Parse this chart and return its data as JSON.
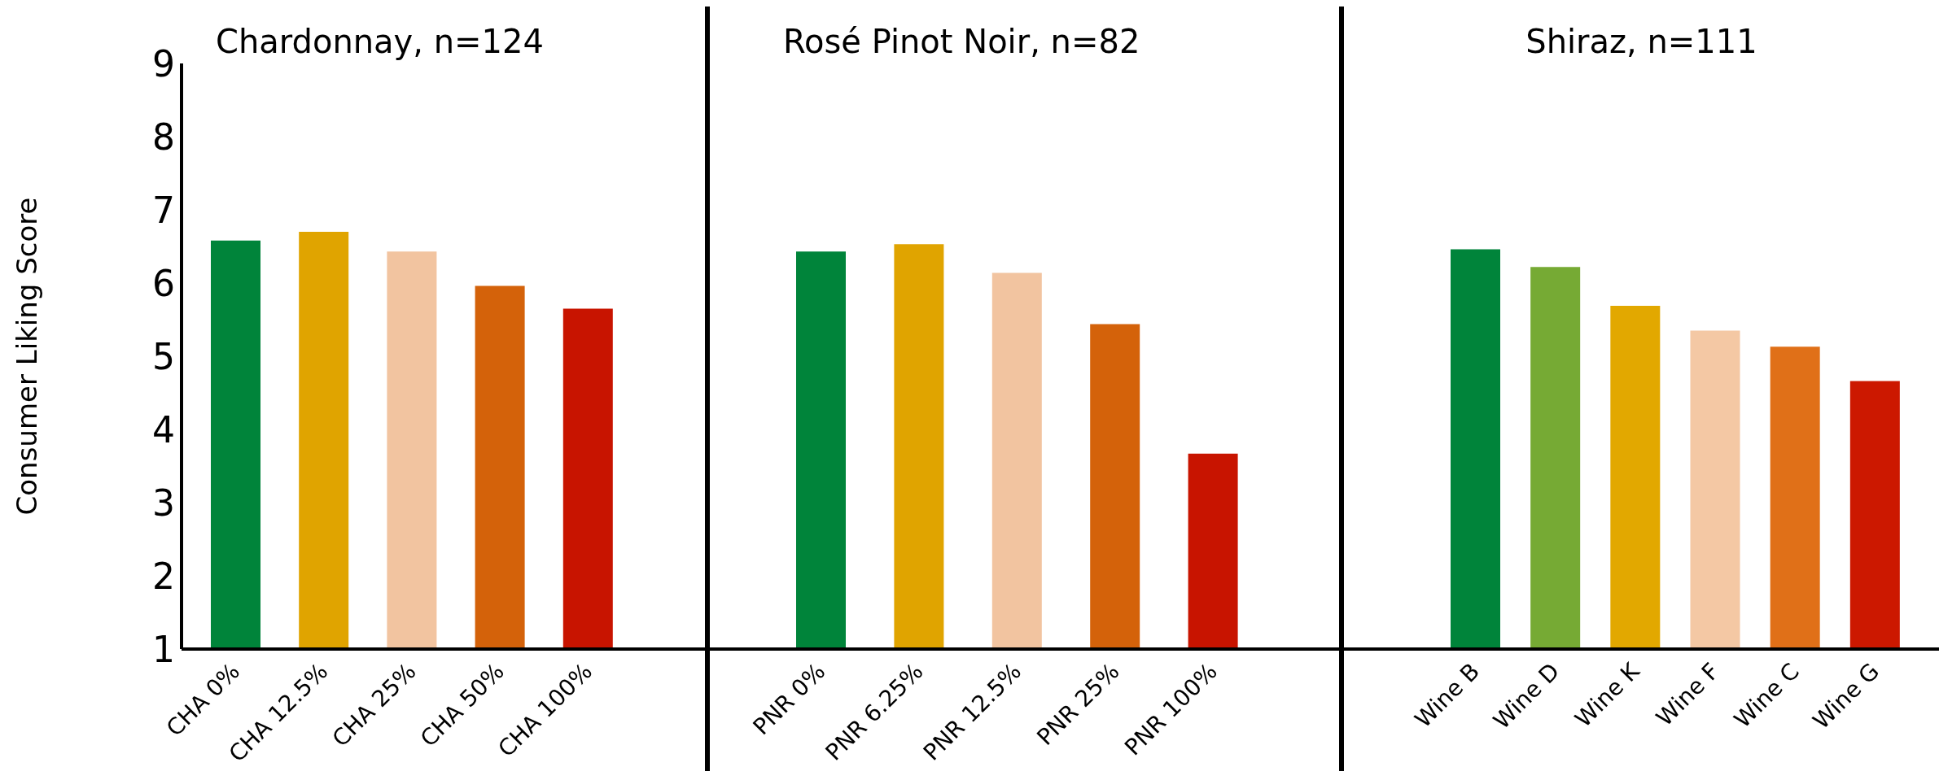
{
  "chart_data": [
    {
      "type": "bar",
      "title": "Chardonnay, n=124",
      "ylabel": "Consumer Liking Score",
      "categories": [
        "CHA 0%",
        "CHA 12.5%",
        "CHA 25%",
        "CHA 50%",
        "CHA 100%"
      ],
      "values": [
        6.58,
        6.7,
        6.43,
        5.96,
        5.65
      ],
      "colors": [
        "#00843a",
        "#e0a400",
        "#f2c4a0",
        "#d4620a",
        "#c81400"
      ],
      "ylim": [
        1,
        9
      ],
      "yticks": [
        1,
        2,
        3,
        4,
        5,
        6,
        7,
        8,
        9
      ]
    },
    {
      "type": "bar",
      "title": "Rosé Pinot Noir, n=82",
      "categories": [
        "PNR 0%",
        "PNR 6.25%",
        "PNR 12.5%",
        "PNR 25%",
        "PNR 100%"
      ],
      "values": [
        6.43,
        6.53,
        6.14,
        5.44,
        3.67
      ],
      "colors": [
        "#00843a",
        "#e0a400",
        "#f2c4a0",
        "#d4620a",
        "#c81400"
      ],
      "ylim": [
        1,
        9
      ],
      "yticks": [
        1,
        2,
        3,
        4,
        5,
        6,
        7,
        8,
        9
      ],
      "tick_labels": "x"
    },
    {
      "type": "bar",
      "title": "Shiraz, n=111",
      "categories": [
        "Wine B",
        "Wine D",
        "Wine K",
        "Wine F",
        "Wine C",
        "Wine G"
      ],
      "values": [
        6.46,
        6.22,
        5.69,
        5.35,
        5.13,
        4.66
      ],
      "colors": [
        "#00843a",
        "#76aa34",
        "#e2a800",
        "#f4c8a4",
        "#e07018",
        "#cc1800"
      ],
      "ylim": [
        1,
        9
      ],
      "yticks": [
        1,
        2,
        3,
        4,
        5,
        6,
        7,
        8,
        9
      ],
      "tick_labels": "x"
    }
  ]
}
